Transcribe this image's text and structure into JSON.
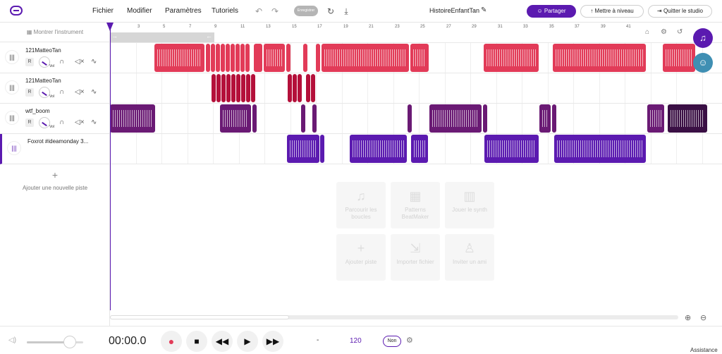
{
  "menu": {
    "file": "Fichier",
    "edit": "Modifier",
    "settings": "Paramètres",
    "tutorials": "Tutoriels",
    "save": "Enregistrer"
  },
  "project": {
    "title": "HistoireEnfantTan"
  },
  "buttons": {
    "share": "Partager",
    "upgrade": "Mettre à niveau",
    "quit": "Quitter le studio"
  },
  "left": {
    "show_instrument": "Montrer l'instrument",
    "add_track": "Ajouter une nouvelle piste"
  },
  "tracks": [
    {
      "name": "121MatteoTan",
      "r": "R",
      "vol": "Vol",
      "color": "#e23b58"
    },
    {
      "name": "121MatteoTan",
      "r": "R",
      "vol": "Vol",
      "color": "#b4103a"
    },
    {
      "name": "wtf_boom",
      "r": "R",
      "vol": "Vol",
      "color": "#6a1a74"
    },
    {
      "name": "Foxrot #ideamonday 3...",
      "r": "R",
      "vol": "Vol",
      "color": "#5b1ab0"
    }
  ],
  "ruler": {
    "ticks": [
      "3",
      "5",
      "7",
      "9",
      "11",
      "13",
      "15",
      "17",
      "19",
      "21",
      "23",
      "25",
      "27",
      "29",
      "31",
      "33",
      "35",
      "37",
      "39",
      "41"
    ]
  },
  "actions": [
    {
      "label": "Parcourir les boucles",
      "icon": "music-note-icon"
    },
    {
      "label": "Patterns BeatMaker",
      "icon": "grid-icon"
    },
    {
      "label": "Jouer le synth",
      "icon": "piano-icon"
    },
    {
      "label": "Ajouter piste",
      "icon": "plus-icon"
    },
    {
      "label": "Importer fichier",
      "icon": "import-icon"
    },
    {
      "label": "Inviter un ami",
      "icon": "add-user-icon"
    }
  ],
  "transport": {
    "time": "00:00.0",
    "dash": "-",
    "bpm": "120",
    "metronome": "Non",
    "assist": "Assistance",
    "volume_level": 0.72
  },
  "colors": {
    "accent": "#5b1ab0",
    "track1": "#e23b58",
    "track2": "#b4103a",
    "track3": "#6a1a74",
    "track4": "#5b1ab0"
  }
}
